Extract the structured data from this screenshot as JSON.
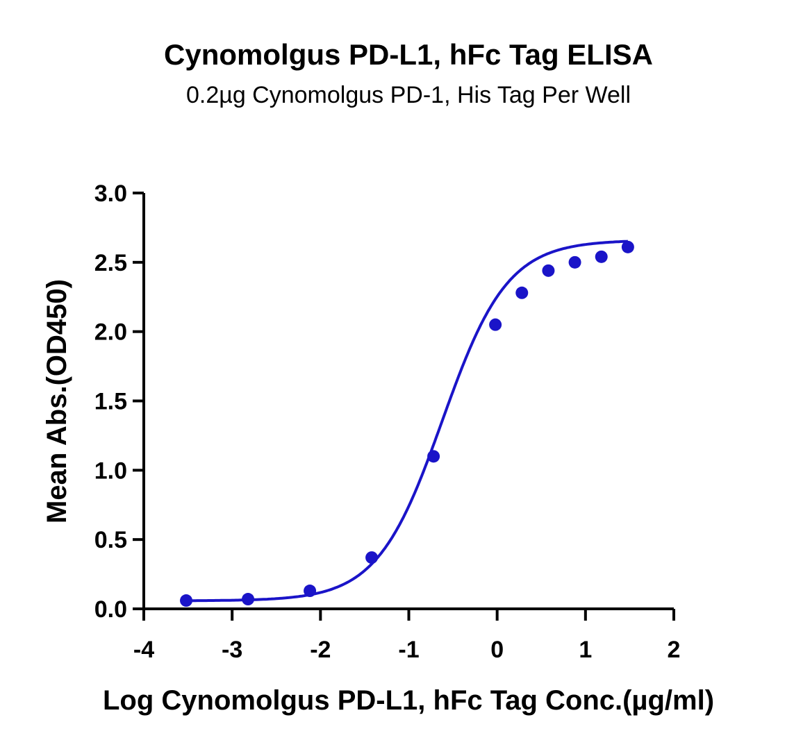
{
  "chart_data": {
    "type": "scatter",
    "title": "Cynomolgus PD-L1, hFc Tag ELISA",
    "subtitle": "0.2µg Cynomolgus PD-1, His Tag Per Well",
    "xlabel": "Log Cynomolgus PD-L1, hFc Tag Conc.(µg/ml)",
    "ylabel": "Mean Abs.(OD450)",
    "xlim": [
      -4,
      2
    ],
    "ylim": [
      0,
      3
    ],
    "xticks": [
      -4,
      -3,
      -2,
      -1,
      0,
      1,
      2
    ],
    "xtick_labels": [
      "-4",
      "-3",
      "-2",
      "-1",
      "0",
      "1",
      "2"
    ],
    "yticks": [
      0,
      0.5,
      1,
      1.5,
      2,
      2.5,
      3
    ],
    "ytick_labels": [
      "0.0",
      "0.5",
      "1.0",
      "1.5",
      "2.0",
      "2.5",
      "3.0"
    ],
    "grid": false,
    "color": "#1a14c8",
    "series": [
      {
        "x": [
          -3.52,
          -2.82,
          -2.12,
          -1.42,
          -0.72,
          -0.02,
          0.28,
          0.58,
          0.88,
          1.18,
          1.48
        ],
        "y": [
          0.06,
          0.07,
          0.13,
          0.37,
          1.1,
          2.05,
          2.28,
          2.44,
          2.5,
          2.54,
          2.61
        ],
        "fit": "four-parameter logistic"
      }
    ]
  }
}
